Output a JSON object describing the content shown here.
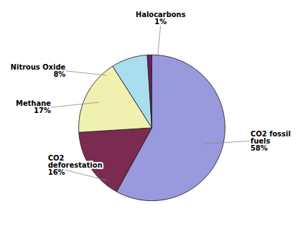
{
  "chart_data": {
    "type": "pie",
    "categories": [
      "CO2 fossil\nfuels",
      "CO2\ndeforestation",
      "Methane",
      "Nitrous Oxide",
      "Halocarbons"
    ],
    "values": [
      58,
      16,
      17,
      8,
      1
    ],
    "value_labels": [
      "58%",
      "16%",
      "17%",
      "8%",
      "1%"
    ],
    "colors": [
      "#9999dd",
      "#7b2a50",
      "#f0f0b0",
      "#aaddee",
      "#6b2060"
    ],
    "data_labels": true
  }
}
